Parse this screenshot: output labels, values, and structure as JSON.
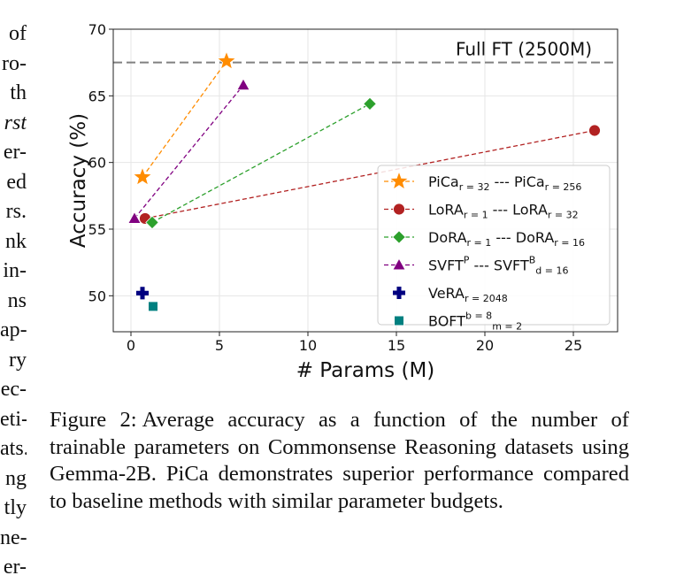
{
  "left_column_fragments": [
    {
      "text": "of",
      "italic": false
    },
    {
      "text": "ro-",
      "italic": false
    },
    {
      "text": "th",
      "italic": false
    },
    {
      "text": "rst",
      "italic": true
    },
    {
      "text": "er-",
      "italic": false
    },
    {
      "text": "ed",
      "italic": false
    },
    {
      "text": "rs.",
      "italic": false
    },
    {
      "text": "nk",
      "italic": false
    },
    {
      "text": "in-",
      "italic": false
    },
    {
      "text": "ns",
      "italic": false
    },
    {
      "text": "ap-",
      "italic": false
    },
    {
      "text": "ry",
      "italic": false
    },
    {
      "text": "ec-",
      "italic": false
    },
    {
      "text": "eti-",
      "italic": false
    },
    {
      "text": "ats.",
      "italic": false
    },
    {
      "text": "ng",
      "italic": false
    },
    {
      "text": "tly",
      "italic": false
    },
    {
      "text": "ne-",
      "italic": false
    },
    {
      "text": "er-",
      "italic": false
    }
  ],
  "figure": {
    "caption_label": "Figure 2:",
    "caption_text": "Average accuracy as a function of the number of trainable parameters on Commonsense Reasoning datasets using Gemma-2B. PiCa demonstrates superior performance compared to baseline methods with similar parameter budgets."
  },
  "chart_data": {
    "type": "scatter",
    "xlabel": "# Params (M)",
    "ylabel": "Accuracy (%)",
    "xlim": [
      -1,
      27.5
    ],
    "ylim": [
      47.3,
      70
    ],
    "x_ticks": [
      0,
      5,
      10,
      15,
      20,
      25
    ],
    "y_ticks": [
      50,
      55,
      60,
      65,
      70
    ],
    "grid": true,
    "legend_position": "lower-right",
    "reference_line": {
      "label": "Full FT (2500M)",
      "y": 67.5,
      "color": "#808080"
    },
    "series": [
      {
        "legend": [
          {
            "t": "PiCa"
          },
          {
            "t": "r = 32",
            "sub": true
          },
          {
            "t": " --- PiCa"
          },
          {
            "t": "r = 256",
            "sub": true
          }
        ],
        "color": "#ff8c00",
        "marker": "star",
        "line": true,
        "points": [
          {
            "x": 0.65,
            "y": 58.9
          },
          {
            "x": 5.4,
            "y": 67.6
          }
        ]
      },
      {
        "legend": [
          {
            "t": "LoRA"
          },
          {
            "t": "r = 1",
            "sub": true
          },
          {
            "t": " --- LoRA"
          },
          {
            "t": "r = 32",
            "sub": true
          }
        ],
        "color": "#b22222",
        "marker": "circle",
        "line": true,
        "points": [
          {
            "x": 0.8,
            "y": 55.8
          },
          {
            "x": 26.2,
            "y": 62.4
          }
        ]
      },
      {
        "legend": [
          {
            "t": "DoRA"
          },
          {
            "t": "r = 1",
            "sub": true
          },
          {
            "t": " --- DoRA"
          },
          {
            "t": "r = 16",
            "sub": true
          }
        ],
        "color": "#2ca02c",
        "marker": "diamond",
        "line": true,
        "points": [
          {
            "x": 1.2,
            "y": 55.5
          },
          {
            "x": 13.5,
            "y": 64.4
          }
        ]
      },
      {
        "legend": [
          {
            "t": "SVFT"
          },
          {
            "t": "P",
            "sup": true
          },
          {
            "t": " --- SVFT"
          },
          {
            "t": "B",
            "sup": true
          },
          {
            "t": "d = 16",
            "sub": true
          }
        ],
        "color": "#800080",
        "marker": "triangle",
        "line": true,
        "points": [
          {
            "x": 0.2,
            "y": 55.8
          },
          {
            "x": 6.35,
            "y": 65.8
          }
        ]
      },
      {
        "legend": [
          {
            "t": "VeRA"
          },
          {
            "t": "r = 2048",
            "sub": true
          }
        ],
        "color": "#000080",
        "marker": "plus",
        "line": false,
        "points": [
          {
            "x": 0.65,
            "y": 50.2
          }
        ]
      },
      {
        "legend": [
          {
            "t": "BOFT"
          },
          {
            "t": "b = 8",
            "sup": true
          },
          {
            "t": "m = 2",
            "sub": true
          }
        ],
        "color": "#008080",
        "marker": "square",
        "line": false,
        "points": [
          {
            "x": 1.25,
            "y": 49.2
          }
        ]
      }
    ]
  }
}
